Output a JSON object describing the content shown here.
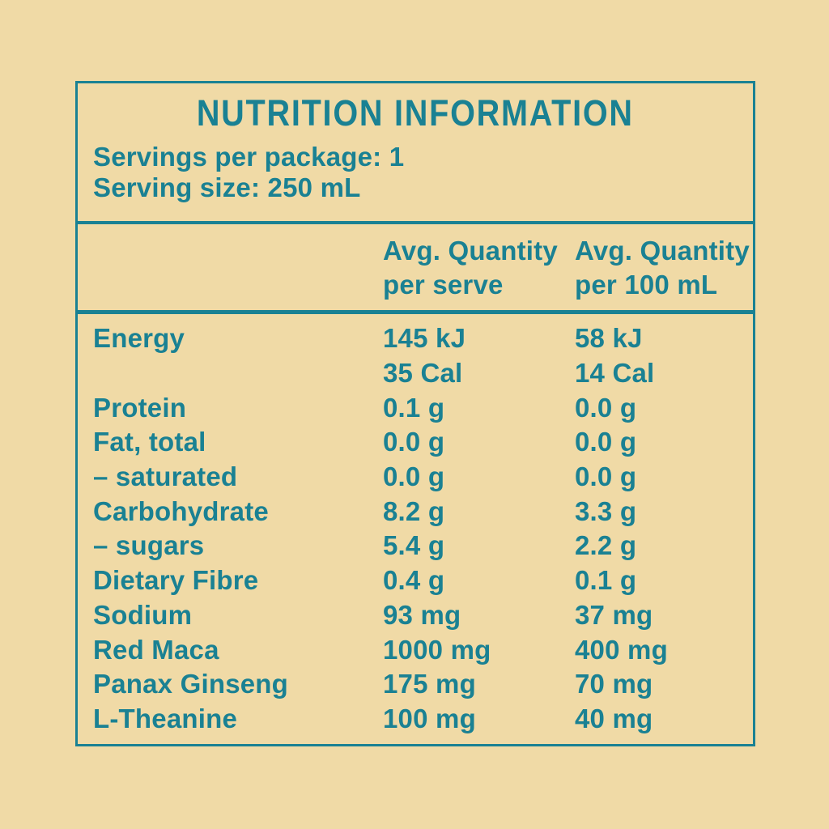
{
  "colors": {
    "background": "#F0DAA6",
    "teal": "#1A8193"
  },
  "panel": {
    "title": "NUTRITION INFORMATION",
    "servings_line": "Servings per package: 1",
    "serving_size_line": "Serving size: 250 mL"
  },
  "table": {
    "columns": [
      {
        "line1": "Avg. Quantity",
        "line2": "per serve"
      },
      {
        "line1": "Avg. Quantity",
        "line2": "per 100 mL"
      }
    ],
    "rows": [
      {
        "label": "Energy",
        "per_serve": "145 kJ",
        "per_100ml": "58 kJ"
      },
      {
        "label": "",
        "per_serve": "35 Cal",
        "per_100ml": "14 Cal"
      },
      {
        "label": "Protein",
        "per_serve": "0.1 g",
        "per_100ml": "0.0 g"
      },
      {
        "label": "Fat, total",
        "per_serve": "0.0 g",
        "per_100ml": "0.0 g"
      },
      {
        "label": "– saturated",
        "per_serve": "0.0 g",
        "per_100ml": "0.0 g"
      },
      {
        "label": "Carbohydrate",
        "per_serve": "8.2 g",
        "per_100ml": "3.3 g"
      },
      {
        "label": "– sugars",
        "per_serve": "5.4 g",
        "per_100ml": "2.2 g"
      },
      {
        "label": "Dietary Fibre",
        "per_serve": "0.4 g",
        "per_100ml": "0.1 g"
      },
      {
        "label": "Sodium",
        "per_serve": "93 mg",
        "per_100ml": "37 mg"
      },
      {
        "label": "Red Maca",
        "per_serve": "1000 mg",
        "per_100ml": "400 mg"
      },
      {
        "label": "Panax Ginseng",
        "per_serve": "175 mg",
        "per_100ml": "70 mg"
      },
      {
        "label": "L-Theanine",
        "per_serve": "100 mg",
        "per_100ml": "40 mg"
      }
    ]
  }
}
